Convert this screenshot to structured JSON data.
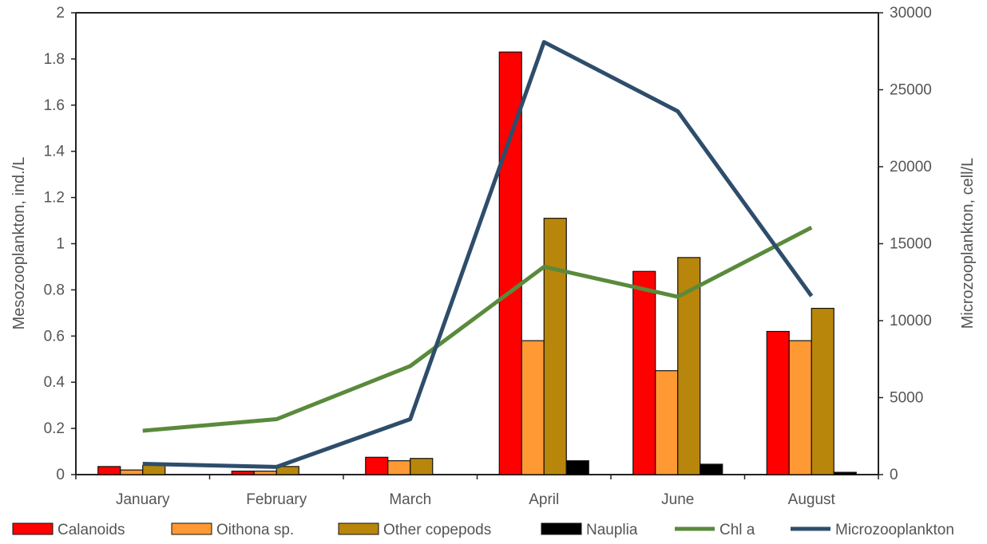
{
  "chart_data": {
    "type": "bar",
    "categories": [
      "January",
      "February",
      "March",
      "April",
      "June",
      "August"
    ],
    "y_left": {
      "label": "Mesozooplankton, ind./L",
      "range": [
        0,
        2
      ],
      "ticks": [
        "0",
        "0.2",
        "0.4",
        "0.6",
        "0.8",
        "1",
        "1.2",
        "1.4",
        "1.6",
        "1.8",
        "2"
      ]
    },
    "y_right": {
      "label": "Microzooplankton, cell/L",
      "range": [
        0,
        30000
      ],
      "ticks": [
        "0",
        "5000",
        "10000",
        "15000",
        "20000",
        "25000",
        "30000"
      ]
    },
    "bar_series": [
      {
        "name": "Calanoids",
        "color": "#ff0000",
        "values": [
          0.035,
          0.015,
          0.075,
          1.83,
          0.88,
          0.62
        ]
      },
      {
        "name": "Oithona sp.",
        "color": "#ff9933",
        "values": [
          0.02,
          0.015,
          0.06,
          0.58,
          0.45,
          0.58
        ]
      },
      {
        "name": "Other copepods",
        "color": "#b8860b",
        "values": [
          0.04,
          0.035,
          0.07,
          1.11,
          0.94,
          0.72
        ]
      },
      {
        "name": "Nauplia",
        "color": "#000000",
        "values": [
          0,
          0,
          0,
          0.06,
          0.045,
          0.01
        ]
      }
    ],
    "line_series": [
      {
        "name": "Chl a",
        "axis": "left",
        "color": "#5a8a3c",
        "values": [
          0.19,
          0.24,
          0.47,
          0.9,
          0.77,
          1.07
        ]
      },
      {
        "name": "Microzooplankton",
        "axis": "right",
        "color": "#2e4d6b",
        "values": [
          700,
          500,
          3600,
          28100,
          23600,
          11600
        ]
      }
    ],
    "grid": false,
    "legend": "bottom"
  }
}
